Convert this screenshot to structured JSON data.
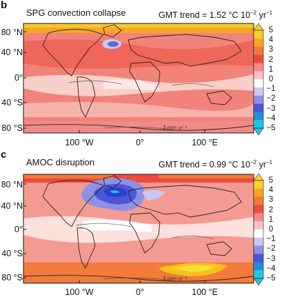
{
  "panels": [
    {
      "letter": "b",
      "title": "SPG convection collapse",
      "trend_prefix": "GMT trend = 1.52 °C 10",
      "trend_exp": "−2",
      "trend_unit": " yr",
      "trend_unit_exp": "−1",
      "contour_label": "3 mm yr⁻¹",
      "lat_labels": [
        "80 °N",
        "40 °N",
        "0°",
        "40 °S",
        "80 °S"
      ],
      "lon_labels": [
        "100 °W",
        "0°",
        "100 °E"
      ],
      "colors": {
        "background": "#f2837a",
        "arctic_band": "#f5a623",
        "tropics": "#f9cfc9",
        "cooling": "#5a6bd8"
      }
    },
    {
      "letter": "c",
      "title": "AMOC disruption",
      "trend_prefix": "GMT trend = 0.99 °C 10",
      "trend_exp": "−2",
      "trend_unit": " yr",
      "trend_unit_exp": "−1",
      "contour_label": "3 mm yr⁻¹",
      "lat_labels": [
        "80 °N",
        "40 °N",
        "0°",
        "40 °S",
        "80 °S"
      ],
      "lon_labels": [
        "100 °W",
        "0°",
        "100 °E"
      ],
      "colors": {
        "background": "#f39a92",
        "north_atlantic_cooling": "#2a3fd6",
        "southern_ocean_warm": "#f6c21a",
        "tropics": "#fbe0dc"
      }
    }
  ],
  "colorbar": {
    "labels": [
      "5",
      "4",
      "3",
      "2",
      "1",
      "0",
      "−1",
      "−2",
      "−3",
      "−4",
      "−5"
    ],
    "colors": [
      "#f8d22c",
      "#f5a623",
      "#f27a3a",
      "#ee4a3c",
      "#f28a86",
      "#f7c3c0",
      "#ffffff",
      "#c9c9f0",
      "#8f8fe6",
      "#4a55d8",
      "#1f8fd8",
      "#22c7e6"
    ]
  }
}
